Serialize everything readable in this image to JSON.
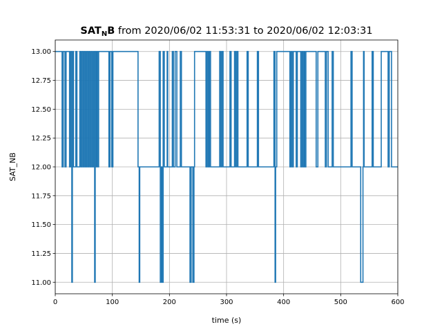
{
  "chart_data": {
    "type": "line",
    "title": {
      "bold_main": "SAT",
      "bold_sub": "N",
      "bold_tail": "B",
      "rest": " from 2020/06/02 11:53:31 to 2020/06/02 12:03:31"
    },
    "xlabel": "time (s)",
    "ylabel": "SAT_NB",
    "xlim": [
      0,
      600
    ],
    "ylim": [
      10.9,
      13.1
    ],
    "xticks": [
      0,
      100,
      200,
      300,
      400,
      500,
      600
    ],
    "xtick_labels": [
      "0",
      "100",
      "200",
      "300",
      "400",
      "500",
      "600"
    ],
    "yticks": [
      11.0,
      11.25,
      11.5,
      11.75,
      12.0,
      12.25,
      12.5,
      12.75,
      13.0
    ],
    "ytick_labels": [
      "11.00",
      "11.25",
      "11.50",
      "11.75",
      "12.00",
      "12.25",
      "12.50",
      "12.75",
      "13.00"
    ],
    "grid": true,
    "colors": {
      "series": "#1f77b4"
    },
    "series": [
      {
        "x": [
          0,
          12,
          14,
          17,
          19,
          25,
          27,
          29,
          30,
          31,
          32,
          36,
          38,
          43,
          45,
          47,
          49,
          51,
          53,
          55,
          57,
          59,
          61,
          63,
          65,
          67,
          69,
          70,
          72,
          73,
          75,
          76,
          94,
          96,
          99,
          101,
          145,
          147,
          148,
          182,
          184,
          186,
          187,
          189,
          191,
          196,
          197,
          205,
          207,
          210,
          213,
          219,
          221,
          236,
          238,
          241,
          243,
          244,
          264,
          266,
          268,
          270,
          272,
          288,
          290,
          292,
          294,
          306,
          308,
          314,
          316,
          318,
          320,
          336,
          338,
          354,
          356,
          383,
          385,
          386,
          388,
          411,
          413,
          415,
          417,
          422,
          424,
          430,
          432,
          434,
          436,
          437,
          439,
          457,
          460,
          473,
          475,
          478,
          485,
          487,
          518,
          520,
          535,
          539,
          540,
          541,
          555,
          557,
          571,
          583,
          585,
          589,
          600
        ],
        "y": [
          13,
          12,
          13,
          12,
          13,
          12,
          13,
          11,
          12,
          13,
          12,
          13,
          12,
          13,
          12,
          13,
          12,
          13,
          12,
          13,
          12,
          13,
          12,
          13,
          12,
          13,
          11,
          13,
          12,
          13,
          12,
          13,
          12,
          13,
          12,
          13,
          12,
          11,
          12,
          13,
          11,
          12,
          11,
          13,
          12,
          13,
          12,
          13,
          12,
          13,
          12,
          13,
          12,
          11,
          12,
          11,
          12,
          13,
          12,
          13,
          12,
          13,
          12,
          13,
          12,
          13,
          12,
          13,
          12,
          13,
          12,
          13,
          12,
          13,
          12,
          13,
          12,
          13,
          11,
          12,
          13,
          12,
          13,
          12,
          13,
          12,
          13,
          12,
          13,
          12,
          13,
          12,
          13,
          12,
          13,
          12,
          13,
          12,
          13,
          12,
          13,
          12,
          11,
          12,
          13,
          12,
          13,
          12,
          13,
          12,
          13,
          12,
          12
        ]
      }
    ]
  }
}
